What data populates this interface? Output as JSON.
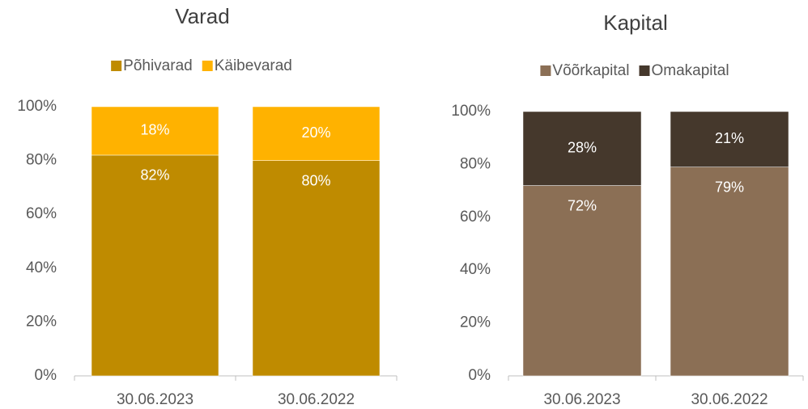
{
  "chart_data": [
    {
      "type": "stacked_bar",
      "title": "Varad",
      "categories": [
        "30.06.2023",
        "30.06.2022"
      ],
      "series": [
        {
          "name": "Põhivarad",
          "color": "#bf8b00",
          "values": [
            82,
            80
          ],
          "value_labels": [
            "82%",
            "80%"
          ]
        },
        {
          "name": "Käibevarad",
          "color": "#ffb200",
          "values": [
            18,
            20
          ],
          "value_labels": [
            "18%",
            "20%"
          ]
        }
      ],
      "ylim": [
        0,
        100
      ],
      "yticks": [
        {
          "value": 0,
          "label": "0%"
        },
        {
          "value": 20,
          "label": "20%"
        },
        {
          "value": 40,
          "label": "40%"
        },
        {
          "value": 60,
          "label": "60%"
        },
        {
          "value": 80,
          "label": "80%"
        },
        {
          "value": 100,
          "label": "100%"
        }
      ],
      "legend": "top"
    },
    {
      "type": "stacked_bar",
      "title": "Kapital",
      "categories": [
        "30.06.2023",
        "30.06.2022"
      ],
      "series": [
        {
          "name": "Võõrkapital",
          "color": "#8b6f55",
          "values": [
            72,
            79
          ],
          "value_labels": [
            "72%",
            "79%"
          ]
        },
        {
          "name": "Omakapital",
          "color": "#45382c",
          "values": [
            28,
            21
          ],
          "value_labels": [
            "28%",
            "21%"
          ]
        }
      ],
      "ylim": [
        0,
        100
      ],
      "yticks": [
        {
          "value": 0,
          "label": "0%"
        },
        {
          "value": 20,
          "label": "20%"
        },
        {
          "value": 40,
          "label": "40%"
        },
        {
          "value": 60,
          "label": "60%"
        },
        {
          "value": 80,
          "label": "80%"
        },
        {
          "value": 100,
          "label": "100%"
        }
      ],
      "legend": "top"
    }
  ]
}
